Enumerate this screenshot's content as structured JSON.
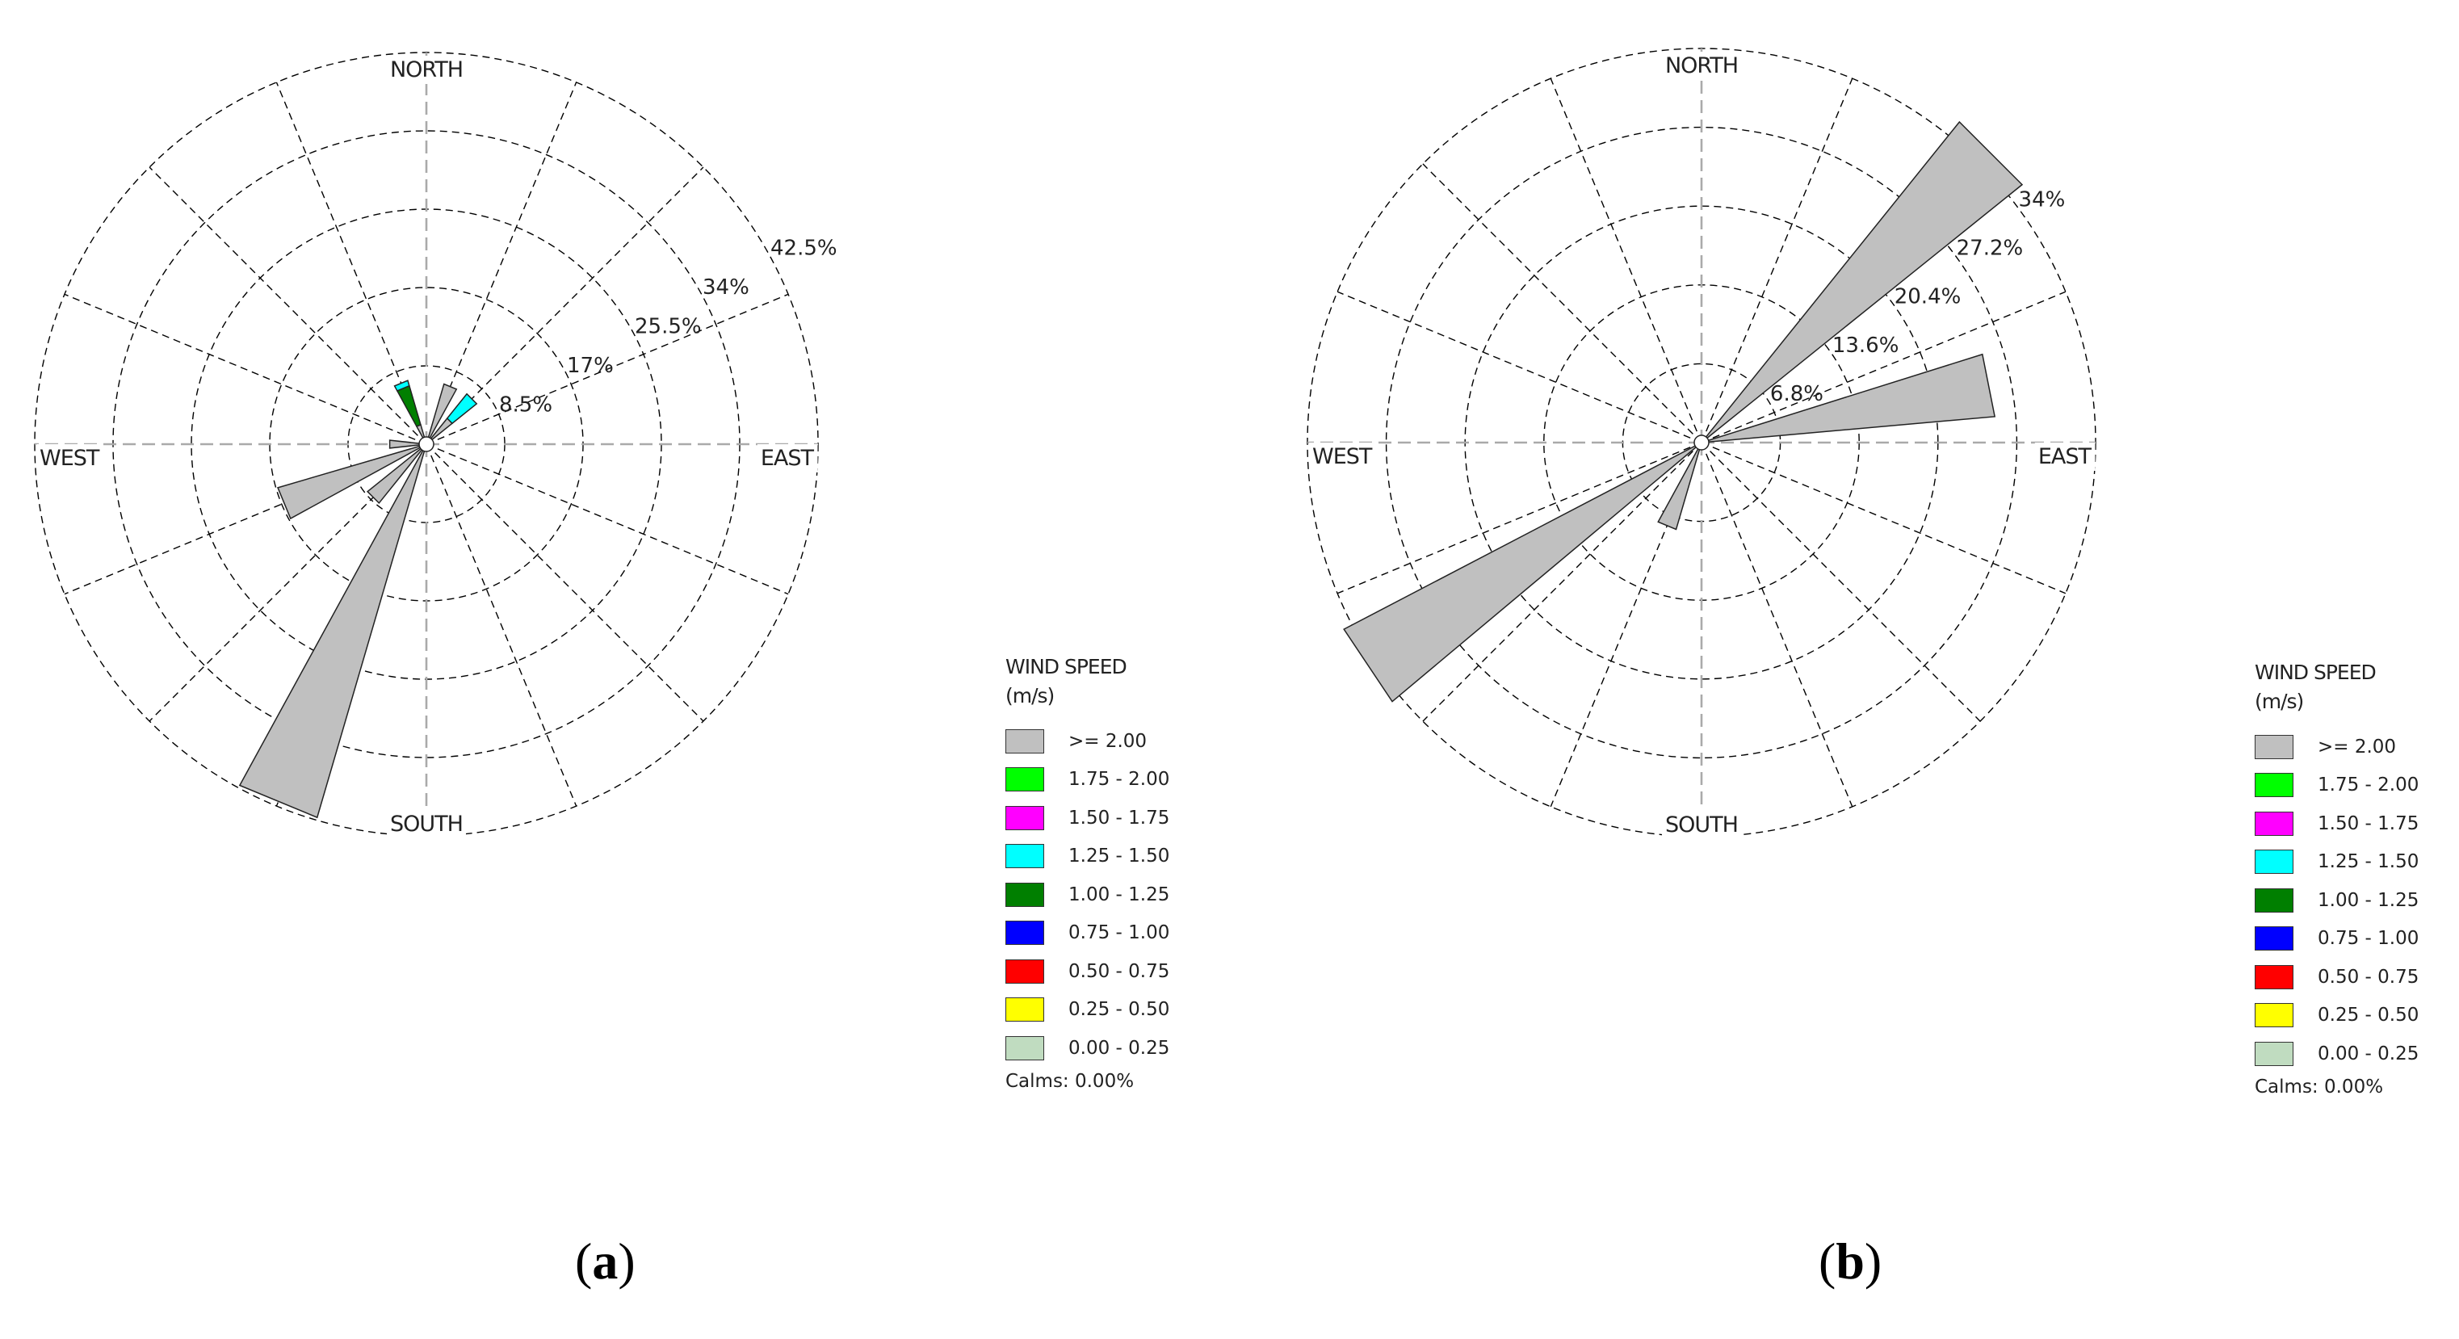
{
  "legend": {
    "title_line1": "WIND SPEED",
    "title_line2": "(m/s)",
    "items": [
      {
        "label": ">= 2.00",
        "color": "#c0c0c0"
      },
      {
        "label": "1.75 - 2.00",
        "color": "#00ff00"
      },
      {
        "label": "1.50 - 1.75",
        "color": "#ff00ff"
      },
      {
        "label": "1.25 - 1.50",
        "color": "#00ffff"
      },
      {
        "label": "1.00 - 1.25",
        "color": "#007f00"
      },
      {
        "label": "0.75 - 1.00",
        "color": "#0000ff"
      },
      {
        "label": "0.50 - 0.75",
        "color": "#ff0000"
      },
      {
        "label": "0.25 - 0.50",
        "color": "#ffff00"
      },
      {
        "label": "0.00 - 0.25",
        "color": "#c0dcc0"
      }
    ],
    "calms": "Calms: 0.00%"
  },
  "chart_data": [
    {
      "type": "wind_rose",
      "panel": "a",
      "panel_label": "a",
      "directions": {
        "north": "NORTH",
        "south": "SOUTH",
        "east": "EAST",
        "west": "WEST"
      },
      "rings": [
        8.5,
        17,
        25.5,
        34,
        42.5
      ],
      "ring_labels": [
        "8.5%",
        "17%",
        "25.5%",
        "34%",
        "42.5%"
      ],
      "max": 42.5,
      "sector_width_deg": 22.5,
      "petals": [
        {
          "dir_deg": 202.5,
          "segments": [
            {
              "color": "#c0c0c0",
              "from": 0,
              "to": 42.2
            }
          ]
        },
        {
          "dir_deg": 22.5,
          "segments": [
            {
              "color": "#c0c0c0",
              "from": 0,
              "to": 6.8
            }
          ]
        },
        {
          "dir_deg": 45,
          "segments": [
            {
              "color": "#c0c0c0",
              "from": 0,
              "to": 3.6
            },
            {
              "color": "#00ffff",
              "from": 3.6,
              "to": 7.0
            }
          ]
        },
        {
          "dir_deg": 337.5,
          "segments": [
            {
              "color": "#c0c0c0",
              "from": 0,
              "to": 2.2
            },
            {
              "color": "#007f00",
              "from": 2.2,
              "to": 6.6
            },
            {
              "color": "#00ffff",
              "from": 6.6,
              "to": 7.2
            }
          ]
        },
        {
          "dir_deg": 270,
          "segments": [
            {
              "color": "#c0c0c0",
              "from": 0,
              "to": 4.0
            }
          ]
        },
        {
          "dir_deg": 247.5,
          "segments": [
            {
              "color": "#c0c0c0",
              "from": 0,
              "to": 16.8
            }
          ]
        },
        {
          "dir_deg": 225,
          "segments": [
            {
              "color": "#c0c0c0",
              "from": 0,
              "to": 8.2
            }
          ]
        }
      ]
    },
    {
      "type": "wind_rose",
      "panel": "b",
      "panel_label": "b",
      "directions": {
        "north": "NORTH",
        "south": "SOUTH",
        "east": "EAST",
        "west": "WEST"
      },
      "rings": [
        6.8,
        13.6,
        20.4,
        27.2,
        34
      ],
      "ring_labels": [
        "6.8%",
        "13.6%",
        "20.4%",
        "27.2%",
        "34%"
      ],
      "max": 34,
      "sector_width_deg": 22.5,
      "petals": [
        {
          "dir_deg": 45,
          "segments": [
            {
              "color": "#c0c0c0",
              "from": 0,
              "to": 35.5
            }
          ]
        },
        {
          "dir_deg": 78.75,
          "segments": [
            {
              "color": "#c0c0c0",
              "from": 0,
              "to": 25.4
            }
          ]
        },
        {
          "dir_deg": 236.25,
          "segments": [
            {
              "color": "#c0c0c0",
              "from": 0,
              "to": 34.8
            }
          ]
        },
        {
          "dir_deg": 202.5,
          "segments": [
            {
              "color": "#c0c0c0",
              "from": 0,
              "to": 7.8
            }
          ]
        }
      ]
    }
  ]
}
